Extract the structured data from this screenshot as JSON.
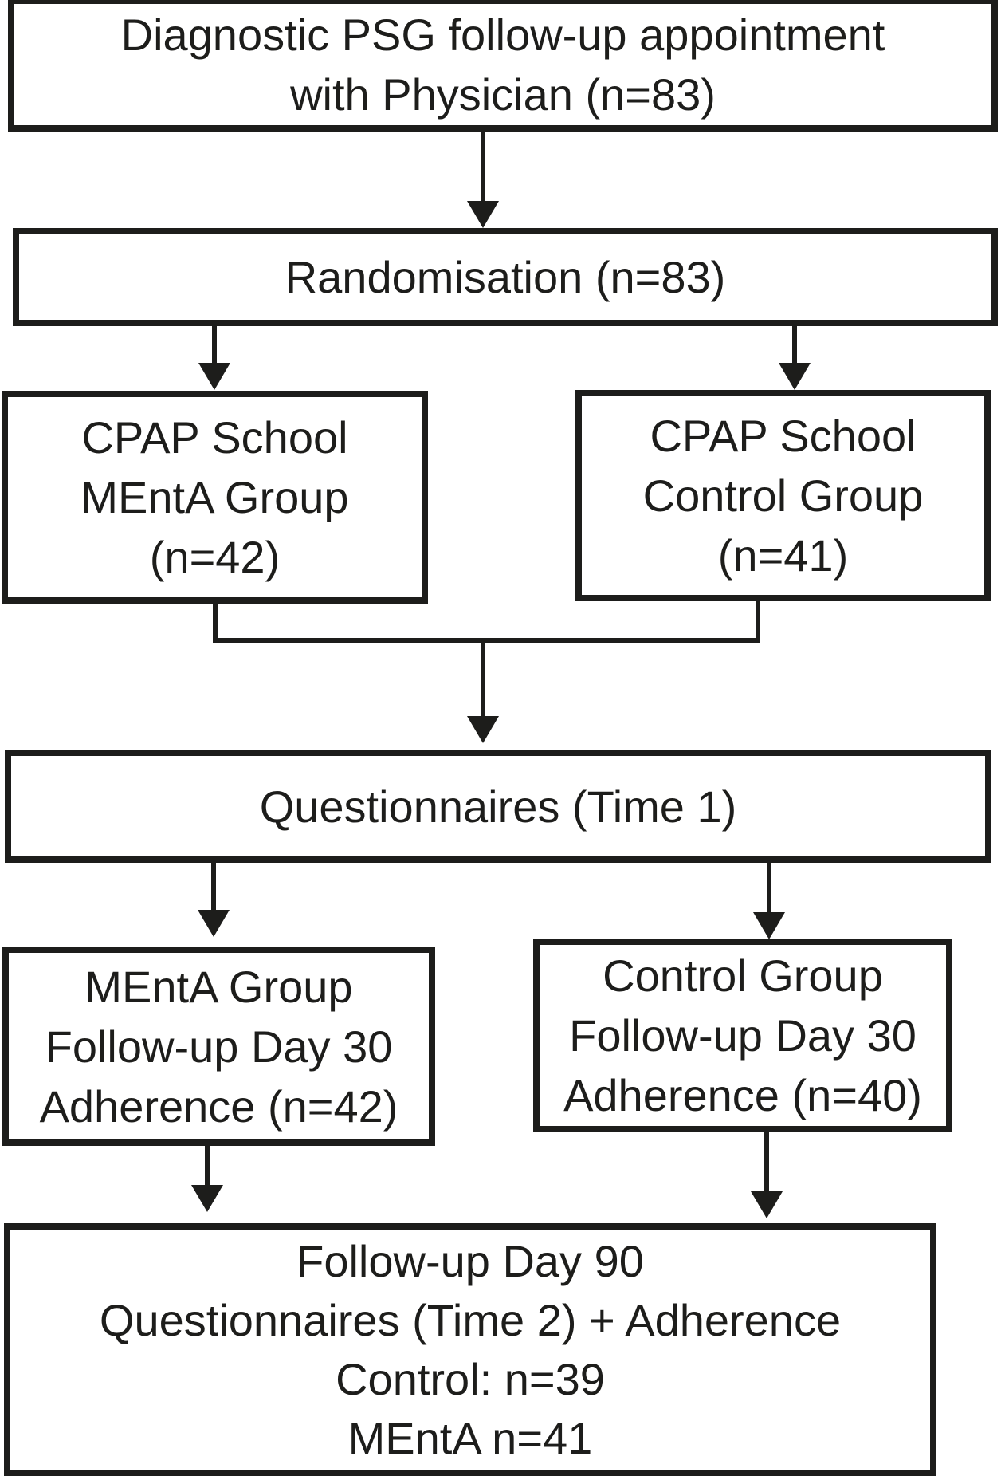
{
  "colors": {
    "ink": "#1d1d1b",
    "background": "#ffffff"
  },
  "boxes": {
    "psg": {
      "lines": [
        "Diagnostic PSG follow-up appointment",
        "with Physician (n=83)"
      ]
    },
    "randomisation": {
      "lines": [
        "Randomisation (n=83)"
      ]
    },
    "cpap_menta": {
      "lines": [
        "CPAP School",
        "MEntA Group",
        "(n=42)"
      ]
    },
    "cpap_control": {
      "lines": [
        "CPAP School",
        "Control Group",
        "(n=41)"
      ]
    },
    "questionnaires_t1": {
      "lines": [
        "Questionnaires (Time 1)"
      ]
    },
    "menta_day30": {
      "lines": [
        "MEntA Group",
        "Follow-up Day 30",
        "Adherence (n=42)"
      ]
    },
    "control_day30": {
      "lines": [
        "Control Group",
        "Follow-up Day 30",
        "Adherence (n=40)"
      ]
    },
    "day90": {
      "lines": [
        "Follow-up Day 90",
        "Questionnaires (Time 2) + Adherence",
        "Control: n=39",
        "MEntA n=41"
      ]
    }
  }
}
